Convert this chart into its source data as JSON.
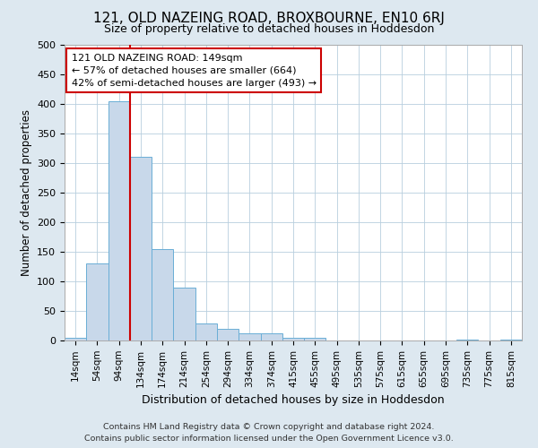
{
  "title": "121, OLD NAZEING ROAD, BROXBOURNE, EN10 6RJ",
  "subtitle": "Size of property relative to detached houses in Hoddesdon",
  "xlabel": "Distribution of detached houses by size in Hoddesdon",
  "ylabel": "Number of detached properties",
  "footnote1": "Contains HM Land Registry data © Crown copyright and database right 2024.",
  "footnote2": "Contains public sector information licensed under the Open Government Licence v3.0.",
  "bins": [
    "14sqm",
    "54sqm",
    "94sqm",
    "134sqm",
    "174sqm",
    "214sqm",
    "254sqm",
    "294sqm",
    "334sqm",
    "374sqm",
    "415sqm",
    "455sqm",
    "495sqm",
    "535sqm",
    "575sqm",
    "615sqm",
    "655sqm",
    "695sqm",
    "735sqm",
    "775sqm",
    "815sqm"
  ],
  "values": [
    5,
    130,
    405,
    310,
    155,
    90,
    29,
    20,
    12,
    12,
    5,
    5,
    0,
    0,
    0,
    0,
    0,
    0,
    2,
    0,
    1
  ],
  "bar_color": "#c8d8ea",
  "bar_edge_color": "#6aaed6",
  "vline_color": "#cc0000",
  "annotation_text": "121 OLD NAZEING ROAD: 149sqm\n← 57% of detached houses are smaller (664)\n42% of semi-detached houses are larger (493) →",
  "annotation_box_color": "#ffffff",
  "annotation_box_edge": "#cc0000",
  "ylim": [
    0,
    500
  ],
  "yticks": [
    0,
    50,
    100,
    150,
    200,
    250,
    300,
    350,
    400,
    450,
    500
  ],
  "bg_color": "#dde8f0",
  "plot_bg_color": "#ffffff",
  "grid_color": "#b8cede"
}
